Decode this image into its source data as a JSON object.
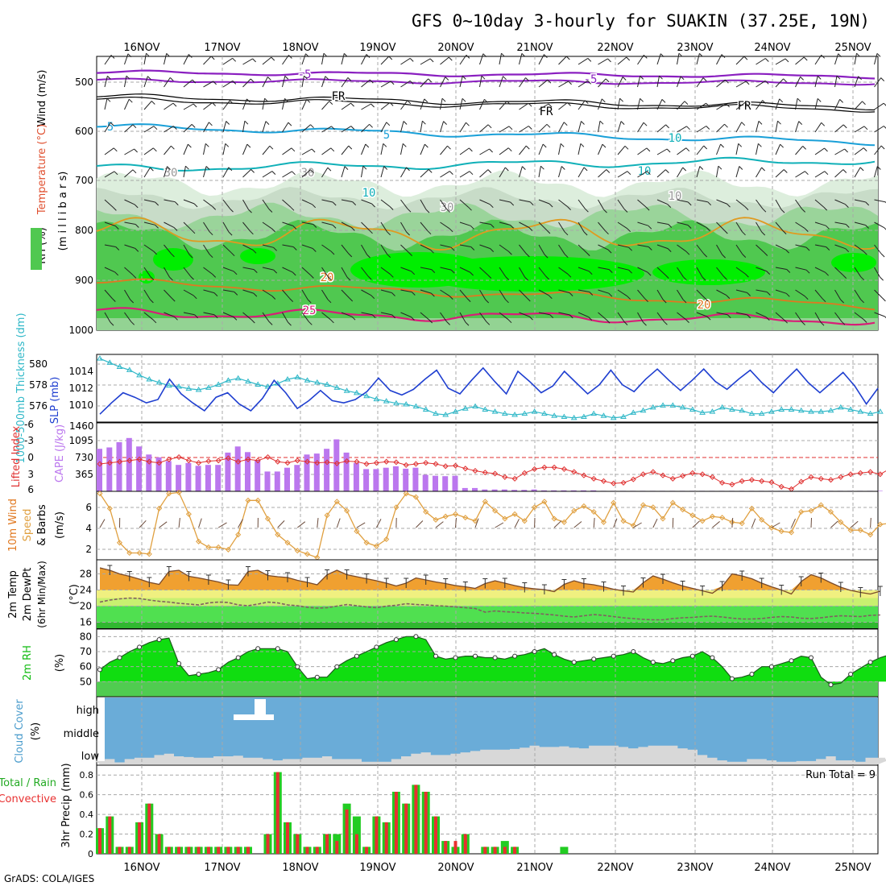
{
  "title": "GFS 0~10day 3-hourly for SUAKIN (37.25E, 19N)",
  "footer": "GrADS: COLA/IGES",
  "date_labels": [
    "16NOV",
    "17NOV",
    "18NOV",
    "19NOV",
    "20NOV",
    "21NOV",
    "22NOV",
    "23NOV",
    "24NOV",
    "25NOV"
  ],
  "colors": {
    "grid": "#a8a8a8",
    "temp_purple": "#8a1fc0",
    "temp_cyan": "#1aa0d8",
    "temp_teal": "#10b0b8",
    "temp_orange": "#e09a20",
    "temp_darkorange": "#e07820",
    "temp_magenta": "#d81e78",
    "rh_light": "#ddeedd",
    "rh_mid": "#9ad49a",
    "rh_green": "#50c850",
    "rh_bright": "#00ee00",
    "slp": "#1f3fd0",
    "thickness": "#30b8c8",
    "cape": "#bb77ee",
    "lifted": "#e03030",
    "wind_speed": "#e0a040",
    "temp_fill": "#f0a030",
    "dewpoint": "#806060",
    "rh2m": "#10dd10",
    "cloud": "#6aacd8",
    "precip_total": "#22cc22",
    "precip_conv": "#e83030"
  },
  "panels": {
    "upper_air": {
      "ylabel_wind": "Wind (m/s)",
      "ylabel_temp": "Temperature (°C)",
      "ylabel_rh": "RH (%)",
      "ylabel_p": "(m i l l i b a r s)",
      "y_ticks": [
        "500",
        "600",
        "700",
        "800",
        "900",
        "1000"
      ],
      "contour_labels": [
        "-5",
        "-5",
        "FR",
        "FR",
        "FR",
        "-5",
        "5",
        "5",
        "10",
        "10",
        "10",
        "10",
        "30",
        "30",
        "30",
        "10",
        "20",
        "20",
        "25"
      ]
    },
    "slp": {
      "ylabel_slp": "SLP (mb)",
      "ylabel_thick": "1000-500mb Thickness (dm)",
      "y_ticks_thick": [
        "580",
        "578",
        "576"
      ],
      "y_ticks_slp": [
        "1014",
        "1012",
        "1010"
      ],
      "corner_label": "1460"
    },
    "cape": {
      "ylabel_li": "Lifted Index",
      "ylabel_cape": "CAPE (J/kg)",
      "y_ticks_li": [
        "-6",
        "-3",
        "0",
        "3",
        "6"
      ],
      "y_ticks_cape": [
        "1095",
        "730",
        "365"
      ]
    },
    "wind10": {
      "ylabel1": "10m Wind",
      "ylabel2": "Speed",
      "ylabel3": "& Barbs",
      "unit": "(m/s)",
      "y_ticks": [
        "6",
        "4",
        "2"
      ]
    },
    "temp2m": {
      "ylabel1": "2m Temp",
      "ylabel2": "2m DewPt",
      "ylabel3": "(6hr Min/Max)",
      "unit": "(°C)",
      "y_ticks": [
        "28",
        "24",
        "20",
        "16"
      ]
    },
    "rh2m": {
      "ylabel": "2m RH",
      "unit": "(%)",
      "y_ticks": [
        "80",
        "70",
        "60",
        "50"
      ]
    },
    "cloud": {
      "ylabel": "Cloud Cover",
      "unit": "(%)",
      "levels": [
        "high",
        "middle",
        "low"
      ]
    },
    "precip": {
      "ylabel1": "Total / Rain",
      "ylabel2": "Convective",
      "ylabel3": "3hr Precip (mm)",
      "y_ticks": [
        "0.8",
        "0.6",
        "0.4",
        "0.2",
        "0"
      ],
      "run_total": "Run Total = 9"
    }
  },
  "chart_data": [
    {
      "type": "line",
      "name": "1000-500mb thickness",
      "ylabel": "1000-500mb Thickness (dm)",
      "ylim": [
        574.8,
        581.3
      ],
      "values": [
        580.9,
        580.5,
        580.1,
        579.8,
        579.3,
        578.9,
        578.6,
        578.3,
        578.2,
        578.0,
        577.9,
        578.1,
        578.4,
        578.8,
        579.0,
        578.7,
        578.4,
        578.2,
        578.5,
        578.9,
        579.1,
        578.8,
        578.6,
        578.4,
        578.1,
        577.8,
        577.6,
        577.3,
        577.0,
        576.8,
        576.6,
        576.5,
        576.3,
        576.0,
        575.6,
        575.5,
        575.8,
        576.1,
        576.3,
        576.0,
        575.8,
        575.6,
        575.5,
        575.6,
        575.8,
        575.6,
        575.4,
        575.3,
        575.2,
        575.3,
        575.6,
        575.4,
        575.2,
        575.3,
        575.7,
        575.9,
        576.2,
        576.4,
        576.4,
        576.2,
        576.0,
        575.7,
        575.8,
        576.2,
        576.0,
        575.9,
        575.6,
        575.6,
        575.8,
        576.0,
        576.0,
        575.9,
        575.8,
        575.8,
        575.9,
        576.2,
        576.0,
        575.8,
        575.6,
        575.8
      ]
    },
    {
      "type": "line",
      "name": "SLP",
      "ylabel": "SLP (mb)",
      "ylim": [
        1009.6,
        1015.6
      ],
      "values": [
        1010.3,
        1011.3,
        1012.2,
        1011.8,
        1011.3,
        1011.6,
        1013.4,
        1012.1,
        1011.3,
        1010.6,
        1011.8,
        1012.2,
        1011.2,
        1010.6,
        1011.7,
        1013.3,
        1012.2,
        1010.8,
        1011.5,
        1012.4,
        1011.5,
        1011.3,
        1011.6,
        1012.3,
        1013.5,
        1012.4,
        1012.0,
        1012.5,
        1013.4,
        1014.2,
        1012.6,
        1012.1,
        1013.3,
        1014.4,
        1013.2,
        1012.1,
        1014.1,
        1013.2,
        1012.2,
        1012.8,
        1014.1,
        1013.1,
        1012.1,
        1012.9,
        1014.2,
        1012.9,
        1012.3,
        1013.4,
        1014.3,
        1013.3,
        1012.4,
        1013.3,
        1014.3,
        1013.2,
        1012.5,
        1013.4,
        1014.2,
        1013.1,
        1012.2,
        1013.3,
        1014.3,
        1013.1,
        1012.2,
        1013.1,
        1014.0,
        1012.8,
        1011.2,
        1012.6
      ]
    },
    {
      "type": "bar",
      "name": "CAPE",
      "ylabel": "CAPE (J/kg)",
      "ylim": [
        0,
        1450
      ],
      "values": [
        900,
        930,
        1040,
        1130,
        950,
        780,
        720,
        640,
        560,
        600,
        540,
        560,
        560,
        820,
        950,
        830,
        660,
        420,
        420,
        500,
        560,
        780,
        800,
        900,
        1100,
        820,
        600,
        470,
        470,
        500,
        530,
        480,
        500,
        350,
        330,
        320,
        330,
        70,
        70,
        40,
        40,
        40,
        30,
        30,
        40,
        20,
        20,
        20,
        20,
        20,
        20,
        10,
        10,
        10,
        10,
        10,
        10,
        10,
        10,
        10,
        10,
        10,
        10,
        10,
        10,
        10,
        10,
        10,
        10,
        10,
        10,
        10,
        10,
        10,
        10,
        10,
        10,
        10,
        10,
        10,
        10
      ]
    },
    {
      "type": "line",
      "name": "Lifted Index",
      "ylabel": "Lifted Index",
      "ylim": [
        6,
        -6
      ],
      "values": [
        1.2,
        1.0,
        0.8,
        0.6,
        0.4,
        0.8,
        1.0,
        0.4,
        0.0,
        0.6,
        1.0,
        0.7,
        0.6,
        0.2,
        0.8,
        0.4,
        0.6,
        0.0,
        0.8,
        1.0,
        0.6,
        0.8,
        1.0,
        0.9,
        1.1,
        0.7,
        0.8,
        1.2,
        1.0,
        0.8,
        0.9,
        1.4,
        1.2,
        1.0,
        1.2,
        1.6,
        1.5,
        2.0,
        2.4,
        2.7,
        2.9,
        3.5,
        3.8,
        2.8,
        2.1,
        1.8,
        1.8,
        2.1,
        2.6,
        3.2,
        3.8,
        4.2,
        4.6,
        4.5,
        3.9,
        3.0,
        2.6,
        3.2,
        3.8,
        3.3,
        2.8,
        3.0,
        3.5,
        4.5,
        4.8,
        4.2,
        4.0,
        4.2,
        4.4,
        5.2,
        5.6,
        4.3,
        3.5,
        3.8,
        4.0,
        3.5,
        3.0,
        2.8,
        2.6,
        3.0,
        2.0
      ]
    },
    {
      "type": "line",
      "name": "10m wind speed",
      "ylabel": "(m/s)",
      "ylim": [
        1,
        7
      ],
      "values": [
        6.8,
        5.5,
        2.5,
        1.6,
        1.6,
        1.5,
        5.5,
        6.8,
        6.9,
        5.0,
        2.6,
        2.1,
        2.1,
        1.9,
        3.2,
        6.2,
        6.2,
        4.6,
        3.2,
        2.5,
        1.8,
        1.5,
        1.2,
        4.9,
        6.1,
        5.3,
        3.5,
        2.5,
        2.2,
        2.8,
        5.6,
        6.8,
        6.5,
        5.2,
        4.5,
        4.8,
        5.0,
        4.7,
        4.4,
        6.1,
        5.3,
        4.6,
        5.0,
        4.4,
        5.6,
        6.1,
        4.6,
        4.3,
        5.3,
        5.7,
        5.2,
        4.3,
        6.0,
        4.4,
        4.0,
        5.8,
        5.6,
        4.6,
        6.0,
        5.4,
        4.9,
        4.4,
        4.8,
        4.7,
        4.3,
        4.2,
        5.5,
        4.5,
        3.8,
        3.5,
        3.4,
        5.2,
        5.3,
        5.8,
        5.2,
        4.3,
        3.6,
        3.6,
        3.2,
        4.1,
        4.2
      ]
    },
    {
      "type": "area",
      "name": "2m temperature",
      "ylabel": "(°C)",
      "ylim": [
        14.5,
        31.5
      ],
      "values": [
        29.5,
        28.9,
        28.0,
        27.4,
        26.7,
        25.9,
        25.4,
        28.6,
        28.9,
        27.4,
        27.0,
        26.5,
        26.0,
        25.3,
        25.2,
        28.6,
        28.9,
        27.6,
        27.3,
        27.1,
        26.4,
        25.9,
        25.3,
        27.8,
        28.9,
        27.8,
        27.3,
        26.8,
        26.3,
        25.7,
        25.0,
        25.7,
        27.0,
        26.5,
        26.0,
        25.6,
        25.1,
        24.8,
        24.4,
        25.6,
        26.3,
        25.7,
        25.1,
        24.6,
        24.3,
        24.1,
        23.6,
        25.4,
        26.3,
        25.6,
        25.3,
        24.8,
        24.2,
        23.8,
        23.5,
        25.8,
        27.5,
        26.7,
        25.8,
        25.0,
        24.4,
        23.8,
        23.2,
        24.9,
        28.0,
        27.5,
        26.8,
        25.7,
        24.8,
        24.0,
        23.0,
        26.1,
        27.8,
        27.0,
        25.8,
        24.7,
        23.9,
        23.4,
        23.0,
        23.7
      ]
    },
    {
      "type": "line",
      "name": "2m dewpoint",
      "ylabel": "(°C)",
      "ylim": [
        14.5,
        31.5
      ],
      "values": [
        21.0,
        21.5,
        21.8,
        22.0,
        21.9,
        21.5,
        21.2,
        21.0,
        20.7,
        20.5,
        20.3,
        20.8,
        21.0,
        20.9,
        20.3,
        20.1,
        20.5,
        21.0,
        20.8,
        20.3,
        20.1,
        19.7,
        19.5,
        19.6,
        20.0,
        20.4,
        20.1,
        19.8,
        19.6,
        20.0,
        20.2,
        20.6,
        20.4,
        20.3,
        20.1,
        20.0,
        19.8,
        19.6,
        19.4,
        18.5,
        18.8,
        18.6,
        18.5,
        18.3,
        18.2,
        18.0,
        17.8,
        17.5,
        17.3,
        17.6,
        17.9,
        17.7,
        17.4,
        17.1,
        16.9,
        16.7,
        16.6,
        16.6,
        16.9,
        17.1,
        17.2,
        17.4,
        17.5,
        17.3,
        17.0,
        16.8,
        16.8,
        16.9,
        17.2,
        17.4,
        17.3,
        17.0,
        16.9,
        17.1,
        17.4,
        17.6,
        17.5,
        17.4,
        17.7,
        17.8
      ]
    },
    {
      "type": "area",
      "name": "2m RH",
      "ylabel": "(%)",
      "ylim": [
        40,
        85
      ],
      "values": [
        58,
        63,
        66,
        70,
        73,
        76,
        78,
        79,
        62,
        54,
        55,
        56,
        58,
        63,
        66,
        70,
        72,
        72,
        72,
        70,
        60,
        52,
        53,
        53,
        60,
        64,
        67,
        70,
        73,
        76,
        78,
        80,
        80,
        78,
        67,
        65,
        66,
        67,
        67,
        66,
        66,
        65,
        67,
        68,
        70,
        72,
        68,
        65,
        63,
        64,
        65,
        66,
        67,
        68,
        70,
        66,
        63,
        62,
        64,
        66,
        67,
        70,
        66,
        60,
        52,
        53,
        55,
        60,
        60,
        62,
        64,
        67,
        66,
        53,
        48,
        49,
        55,
        59,
        63,
        66,
        68
      ]
    },
    {
      "type": "area",
      "name": "low cloud cover",
      "ylabel": "(%)",
      "ylim": [
        0,
        100
      ],
      "values": [
        5,
        8,
        3,
        8,
        10,
        10,
        14,
        16,
        12,
        11,
        10,
        10,
        12,
        12,
        13,
        10,
        10,
        8,
        6,
        8,
        8,
        10,
        10,
        12,
        8,
        8,
        8,
        4,
        4,
        4,
        8,
        12,
        16,
        18,
        14,
        14,
        16,
        18,
        20,
        22,
        22,
        22,
        23,
        25,
        28,
        26,
        26,
        27,
        25,
        24,
        28,
        28,
        28,
        26,
        24,
        26,
        28,
        28,
        28,
        24,
        22,
        14,
        10,
        6,
        4,
        4,
        8,
        8,
        6,
        4,
        4,
        5,
        5,
        8,
        12,
        6,
        6,
        4,
        10,
        10,
        8,
        16
      ]
    },
    {
      "type": "bar",
      "name": "3hr precip total",
      "ylabel": "3hr Precip (mm)",
      "ylim": [
        0,
        0.9
      ],
      "values": [
        0.26,
        0.38,
        0.07,
        0.07,
        0.32,
        0.51,
        0.2,
        0.07,
        0.07,
        0.07,
        0.07,
        0.07,
        0.07,
        0.07,
        0.07,
        0.07,
        0,
        0.2,
        0.83,
        0.32,
        0.2,
        0.07,
        0.07,
        0.2,
        0.2,
        0.51,
        0.38,
        0.07,
        0.38,
        0.32,
        0.63,
        0.51,
        0.7,
        0.63,
        0.38,
        0.13,
        0.07,
        0.2,
        0,
        0.07,
        0.07,
        0.13,
        0.07,
        0,
        0,
        0,
        0,
        0.07,
        0,
        0,
        0,
        0,
        0,
        0,
        0,
        0,
        0,
        0,
        0,
        0,
        0,
        0,
        0,
        0,
        0,
        0,
        0,
        0,
        0,
        0,
        0,
        0,
        0,
        0,
        0,
        0,
        0,
        0,
        0,
        0
      ]
    },
    {
      "type": "bar",
      "name": "3hr precip convective",
      "ylabel": "3hr Precip (mm)",
      "ylim": [
        0,
        0.9
      ],
      "values": [
        0.26,
        0.38,
        0.07,
        0.07,
        0.32,
        0.51,
        0.2,
        0.07,
        0.07,
        0.07,
        0.07,
        0.07,
        0.07,
        0.07,
        0.07,
        0.07,
        0,
        0.2,
        0.83,
        0.32,
        0.2,
        0.07,
        0.07,
        0.2,
        0.13,
        0.45,
        0.2,
        0.07,
        0.38,
        0.32,
        0.63,
        0.51,
        0.7,
        0.63,
        0.38,
        0.13,
        0.13,
        0.2,
        0,
        0.07,
        0.07,
        0.07,
        0.07,
        0,
        0,
        0,
        0,
        0,
        0,
        0,
        0,
        0,
        0,
        0,
        0,
        0,
        0,
        0,
        0,
        0,
        0,
        0,
        0,
        0,
        0,
        0,
        0,
        0,
        0,
        0,
        0,
        0,
        0,
        0,
        0,
        0,
        0,
        0,
        0,
        0
      ]
    }
  ]
}
